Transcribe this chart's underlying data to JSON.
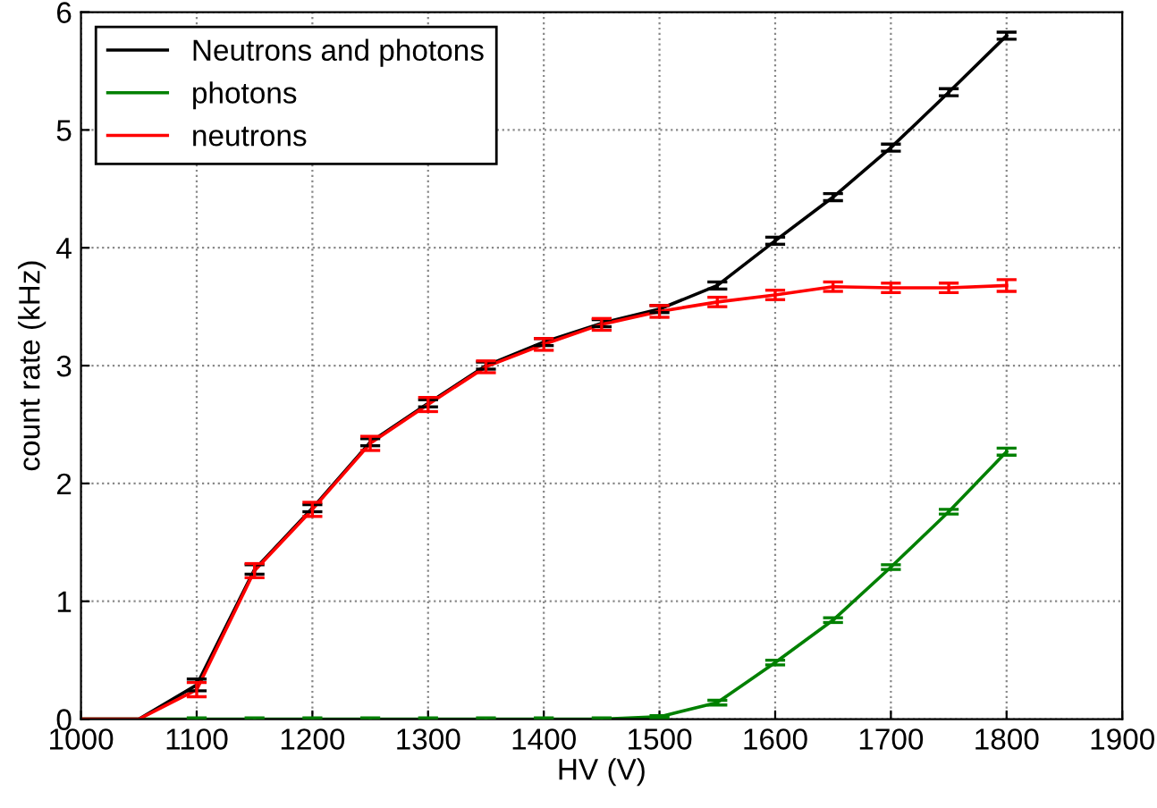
{
  "chart_data": {
    "type": "line",
    "xlabel": "HV (V)",
    "ylabel": "count rate (kHz)",
    "x": [
      1000,
      1050,
      1100,
      1150,
      1200,
      1250,
      1300,
      1350,
      1400,
      1450,
      1500,
      1550,
      1600,
      1650,
      1700,
      1750,
      1800
    ],
    "series": [
      {
        "name": "Neutrons and photons",
        "color": "#000000",
        "values": [
          0,
          0,
          0.29,
          1.27,
          1.79,
          2.35,
          2.68,
          3.0,
          3.2,
          3.36,
          3.48,
          3.68,
          4.06,
          4.43,
          4.85,
          5.32,
          5.8
        ],
        "errors": [
          null,
          null,
          0.05,
          0.04,
          0.03,
          0.03,
          0.03,
          0.03,
          0.03,
          0.03,
          0.03,
          0.03,
          0.03,
          0.03,
          0.03,
          0.03,
          0.03
        ]
      },
      {
        "name": "photons",
        "color": "#008000",
        "values": [
          0,
          0,
          0,
          0,
          0,
          0,
          0,
          0,
          0,
          0,
          0.02,
          0.14,
          0.48,
          0.84,
          1.29,
          1.76,
          2.27
        ],
        "errors": [
          null,
          null,
          0.01,
          0.01,
          0.01,
          0.01,
          0.01,
          0.01,
          0.01,
          0.01,
          0.01,
          0.02,
          0.02,
          0.02,
          0.02,
          0.02,
          0.03
        ]
      },
      {
        "name": "neutrons",
        "color": "#ff0000",
        "values": [
          0,
          0,
          0.25,
          1.26,
          1.78,
          2.34,
          2.67,
          2.99,
          3.18,
          3.35,
          3.46,
          3.54,
          3.6,
          3.67,
          3.66,
          3.66,
          3.68
        ],
        "errors": [
          null,
          null,
          0.06,
          0.06,
          0.06,
          0.06,
          0.06,
          0.05,
          0.05,
          0.05,
          0.05,
          0.04,
          0.04,
          0.04,
          0.04,
          0.04,
          0.05
        ]
      }
    ],
    "xlim": [
      1000,
      1900
    ],
    "xticks": [
      1000,
      1100,
      1200,
      1300,
      1400,
      1500,
      1600,
      1700,
      1800,
      1900
    ],
    "ylim": [
      0,
      6
    ],
    "yticks": [
      0,
      1,
      2,
      3,
      4,
      5,
      6
    ],
    "grid": true,
    "legend": "top left",
    "marker": "none",
    "line_style": "solid"
  }
}
